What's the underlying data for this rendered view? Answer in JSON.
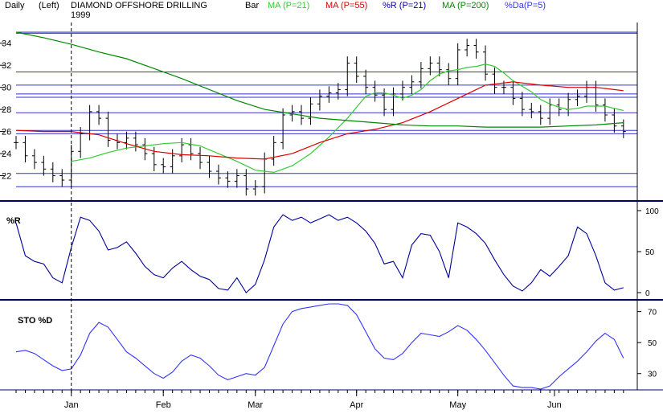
{
  "header": {
    "period": "Daily",
    "axis_side": "(Left)",
    "title": "DIAMOND OFFSHORE DRILLING",
    "year": "1999",
    "chart_style": "Bar",
    "legend": [
      {
        "label": "MA (P=21)",
        "color": "#33cc33"
      },
      {
        "label": "MA (P=55)",
        "color": "#dd0000"
      },
      {
        "label": "%R (P=21)",
        "color": "#000099"
      },
      {
        "label": "MA (P=200)",
        "color": "#008800"
      },
      {
        "label": "%Da(P=5)",
        "color": "#3333ff"
      }
    ]
  },
  "chart_data": [
    {
      "type": "bar",
      "panel": "price",
      "title": "DIAMOND OFFSHORE DRILLING",
      "ylim": [
        20,
        35
      ],
      "yticks": [
        22,
        24,
        26,
        28,
        30,
        32,
        34
      ],
      "xlim": [
        0,
        135
      ],
      "x_labels": [
        {
          "label": "Jan",
          "x": 12
        },
        {
          "label": "Feb",
          "x": 32
        },
        {
          "label": "Mar",
          "x": 52
        },
        {
          "label": "Apr",
          "x": 74
        },
        {
          "label": "May",
          "x": 96
        },
        {
          "label": "Jun",
          "x": 117
        }
      ],
      "marker_x": 12,
      "resistance_levels": [
        21,
        22.2,
        25.8,
        26.1,
        27.7,
        29.1,
        29.4,
        30.2,
        31.4,
        34.9,
        35
      ],
      "series": [
        {
          "name": "MA (P=21)",
          "color": "#33cc33",
          "x": [
            12,
            16,
            20,
            24,
            28,
            32,
            36,
            40,
            44,
            48,
            52,
            56,
            60,
            64,
            68,
            72,
            74,
            76,
            78,
            80,
            82,
            84,
            86,
            88,
            90,
            92,
            94,
            96,
            98,
            100,
            102,
            104,
            106,
            108,
            110,
            112,
            114,
            116,
            118,
            120,
            122,
            124,
            126,
            128,
            130,
            132
          ],
          "values": [
            23.3,
            23.6,
            24.1,
            24.5,
            24.7,
            24.9,
            25.0,
            24.7,
            24.0,
            23.3,
            22.5,
            22.3,
            22.9,
            24.0,
            25.5,
            27.2,
            28.2,
            29.2,
            29.5,
            29.5,
            29.3,
            29.0,
            29.3,
            29.8,
            30.6,
            31.2,
            31.5,
            31.6,
            31.8,
            31.9,
            32.1,
            31.9,
            31.3,
            30.6,
            30.1,
            29.6,
            28.9,
            28.5,
            28.2,
            28.0,
            28.1,
            28.3,
            28.3,
            28.3,
            28.1,
            27.9
          ]
        },
        {
          "name": "MA (P=55)",
          "color": "#dd0000",
          "x": [
            0,
            6,
            12,
            18,
            24,
            30,
            36,
            42,
            48,
            54,
            60,
            66,
            72,
            78,
            84,
            90,
            96,
            102,
            108,
            114,
            120,
            126,
            132
          ],
          "values": [
            26.1,
            26.0,
            26.0,
            25.7,
            24.9,
            24.2,
            23.9,
            23.8,
            23.6,
            23.5,
            24.0,
            25.0,
            25.8,
            26.2,
            26.8,
            27.8,
            29.0,
            30.2,
            30.5,
            30.2,
            30.0,
            30.0,
            29.7
          ]
        },
        {
          "name": "MA (P=200)",
          "color": "#008800",
          "x": [
            0,
            6,
            12,
            18,
            24,
            30,
            36,
            42,
            48,
            54,
            60,
            66,
            72,
            78,
            84,
            90,
            96,
            102,
            108,
            114,
            120,
            126,
            132
          ],
          "values": [
            35.0,
            34.5,
            33.9,
            33.2,
            32.6,
            31.7,
            30.8,
            29.8,
            28.8,
            28.0,
            27.6,
            27.2,
            27.0,
            26.8,
            26.6,
            26.5,
            26.5,
            26.4,
            26.4,
            26.4,
            26.5,
            26.6,
            26.8
          ]
        },
        {
          "name": "Close",
          "color": "#000000",
          "x": [
            0,
            2,
            4,
            6,
            8,
            10,
            12,
            14,
            16,
            18,
            20,
            22,
            24,
            26,
            28,
            30,
            32,
            34,
            36,
            38,
            40,
            42,
            44,
            46,
            48,
            50,
            52,
            54,
            56,
            58,
            60,
            62,
            64,
            66,
            68,
            70,
            72,
            74,
            76,
            78,
            80,
            82,
            84,
            86,
            88,
            90,
            92,
            94,
            96,
            98,
            100,
            102,
            104,
            106,
            108,
            110,
            112,
            114,
            116,
            118,
            120,
            122,
            124,
            126,
            128,
            130,
            132
          ],
          "values": [
            25.0,
            23.8,
            23.2,
            22.6,
            22.0,
            21.6,
            24.2,
            25.8,
            27.8,
            27.2,
            25.2,
            25.0,
            25.4,
            24.8,
            24.0,
            23.0,
            22.8,
            23.8,
            24.8,
            24.0,
            23.2,
            22.4,
            21.8,
            21.5,
            22.0,
            20.8,
            21.0,
            23.5,
            25.0,
            27.5,
            27.8,
            27.2,
            28.5,
            29.2,
            29.5,
            29.8,
            32.2,
            31.0,
            30.0,
            29.3,
            28.0,
            29.4,
            30.0,
            30.5,
            31.7,
            32.2,
            31.6,
            30.8,
            33.4,
            33.8,
            33.2,
            31.2,
            30.0,
            30.0,
            29.0,
            28.0,
            27.8,
            27.2,
            28.4,
            28.0,
            28.9,
            29.2,
            30.0,
            28.4,
            27.5,
            26.5,
            26.0
          ]
        }
      ]
    },
    {
      "type": "line",
      "panel": "williams_r",
      "title": "%R",
      "ylim": [
        0,
        100
      ],
      "yticks": [
        0,
        50,
        100
      ],
      "series": [
        {
          "name": "%R (P=21)",
          "color": "#000099",
          "x": [
            0,
            2,
            4,
            6,
            8,
            10,
            12,
            14,
            16,
            18,
            20,
            22,
            24,
            26,
            28,
            30,
            32,
            34,
            36,
            38,
            40,
            42,
            44,
            46,
            48,
            50,
            52,
            54,
            56,
            58,
            60,
            62,
            64,
            66,
            68,
            70,
            72,
            74,
            76,
            78,
            80,
            82,
            84,
            86,
            88,
            90,
            92,
            94,
            96,
            98,
            100,
            102,
            104,
            106,
            108,
            110,
            112,
            114,
            116,
            118,
            120,
            122,
            124,
            126,
            128,
            130,
            132
          ],
          "values": [
            85,
            45,
            38,
            35,
            18,
            12,
            55,
            92,
            88,
            75,
            52,
            55,
            62,
            48,
            32,
            22,
            18,
            30,
            38,
            28,
            20,
            16,
            5,
            3,
            18,
            0,
            10,
            40,
            80,
            95,
            88,
            92,
            85,
            90,
            95,
            88,
            92,
            85,
            75,
            60,
            35,
            38,
            18,
            58,
            72,
            70,
            50,
            18,
            85,
            80,
            72,
            60,
            40,
            22,
            8,
            2,
            12,
            28,
            20,
            32,
            45,
            80,
            72,
            45,
            12,
            3,
            6
          ]
        }
      ]
    },
    {
      "type": "line",
      "panel": "stochastic",
      "title": "STO %D",
      "ylim": [
        20,
        75
      ],
      "yticks": [
        30,
        50,
        70
      ],
      "series": [
        {
          "name": "%Da(P=5)",
          "color": "#3333ff",
          "x": [
            0,
            2,
            4,
            6,
            8,
            10,
            12,
            14,
            16,
            18,
            20,
            22,
            24,
            26,
            28,
            30,
            32,
            34,
            36,
            38,
            40,
            42,
            44,
            46,
            48,
            50,
            52,
            54,
            56,
            58,
            60,
            62,
            64,
            66,
            68,
            70,
            72,
            74,
            76,
            78,
            80,
            82,
            84,
            86,
            88,
            90,
            92,
            94,
            96,
            98,
            100,
            102,
            104,
            106,
            108,
            110,
            112,
            114,
            116,
            118,
            120,
            122,
            124,
            126,
            128,
            130,
            132
          ],
          "values": [
            44,
            45,
            43,
            39,
            35,
            32,
            33,
            42,
            56,
            63,
            60,
            52,
            44,
            40,
            35,
            30,
            27,
            31,
            38,
            42,
            40,
            35,
            29,
            26,
            28,
            30,
            29,
            34,
            48,
            62,
            70,
            72,
            73,
            74,
            75,
            75,
            74,
            68,
            57,
            46,
            40,
            39,
            43,
            50,
            56,
            55,
            54,
            57,
            61,
            58,
            52,
            45,
            37,
            29,
            22,
            21,
            21,
            20,
            22,
            28,
            33,
            38,
            44,
            51,
            56,
            52,
            40
          ]
        }
      ]
    }
  ],
  "panels": {
    "r_label": "%R",
    "sto_label": "STO %D"
  }
}
